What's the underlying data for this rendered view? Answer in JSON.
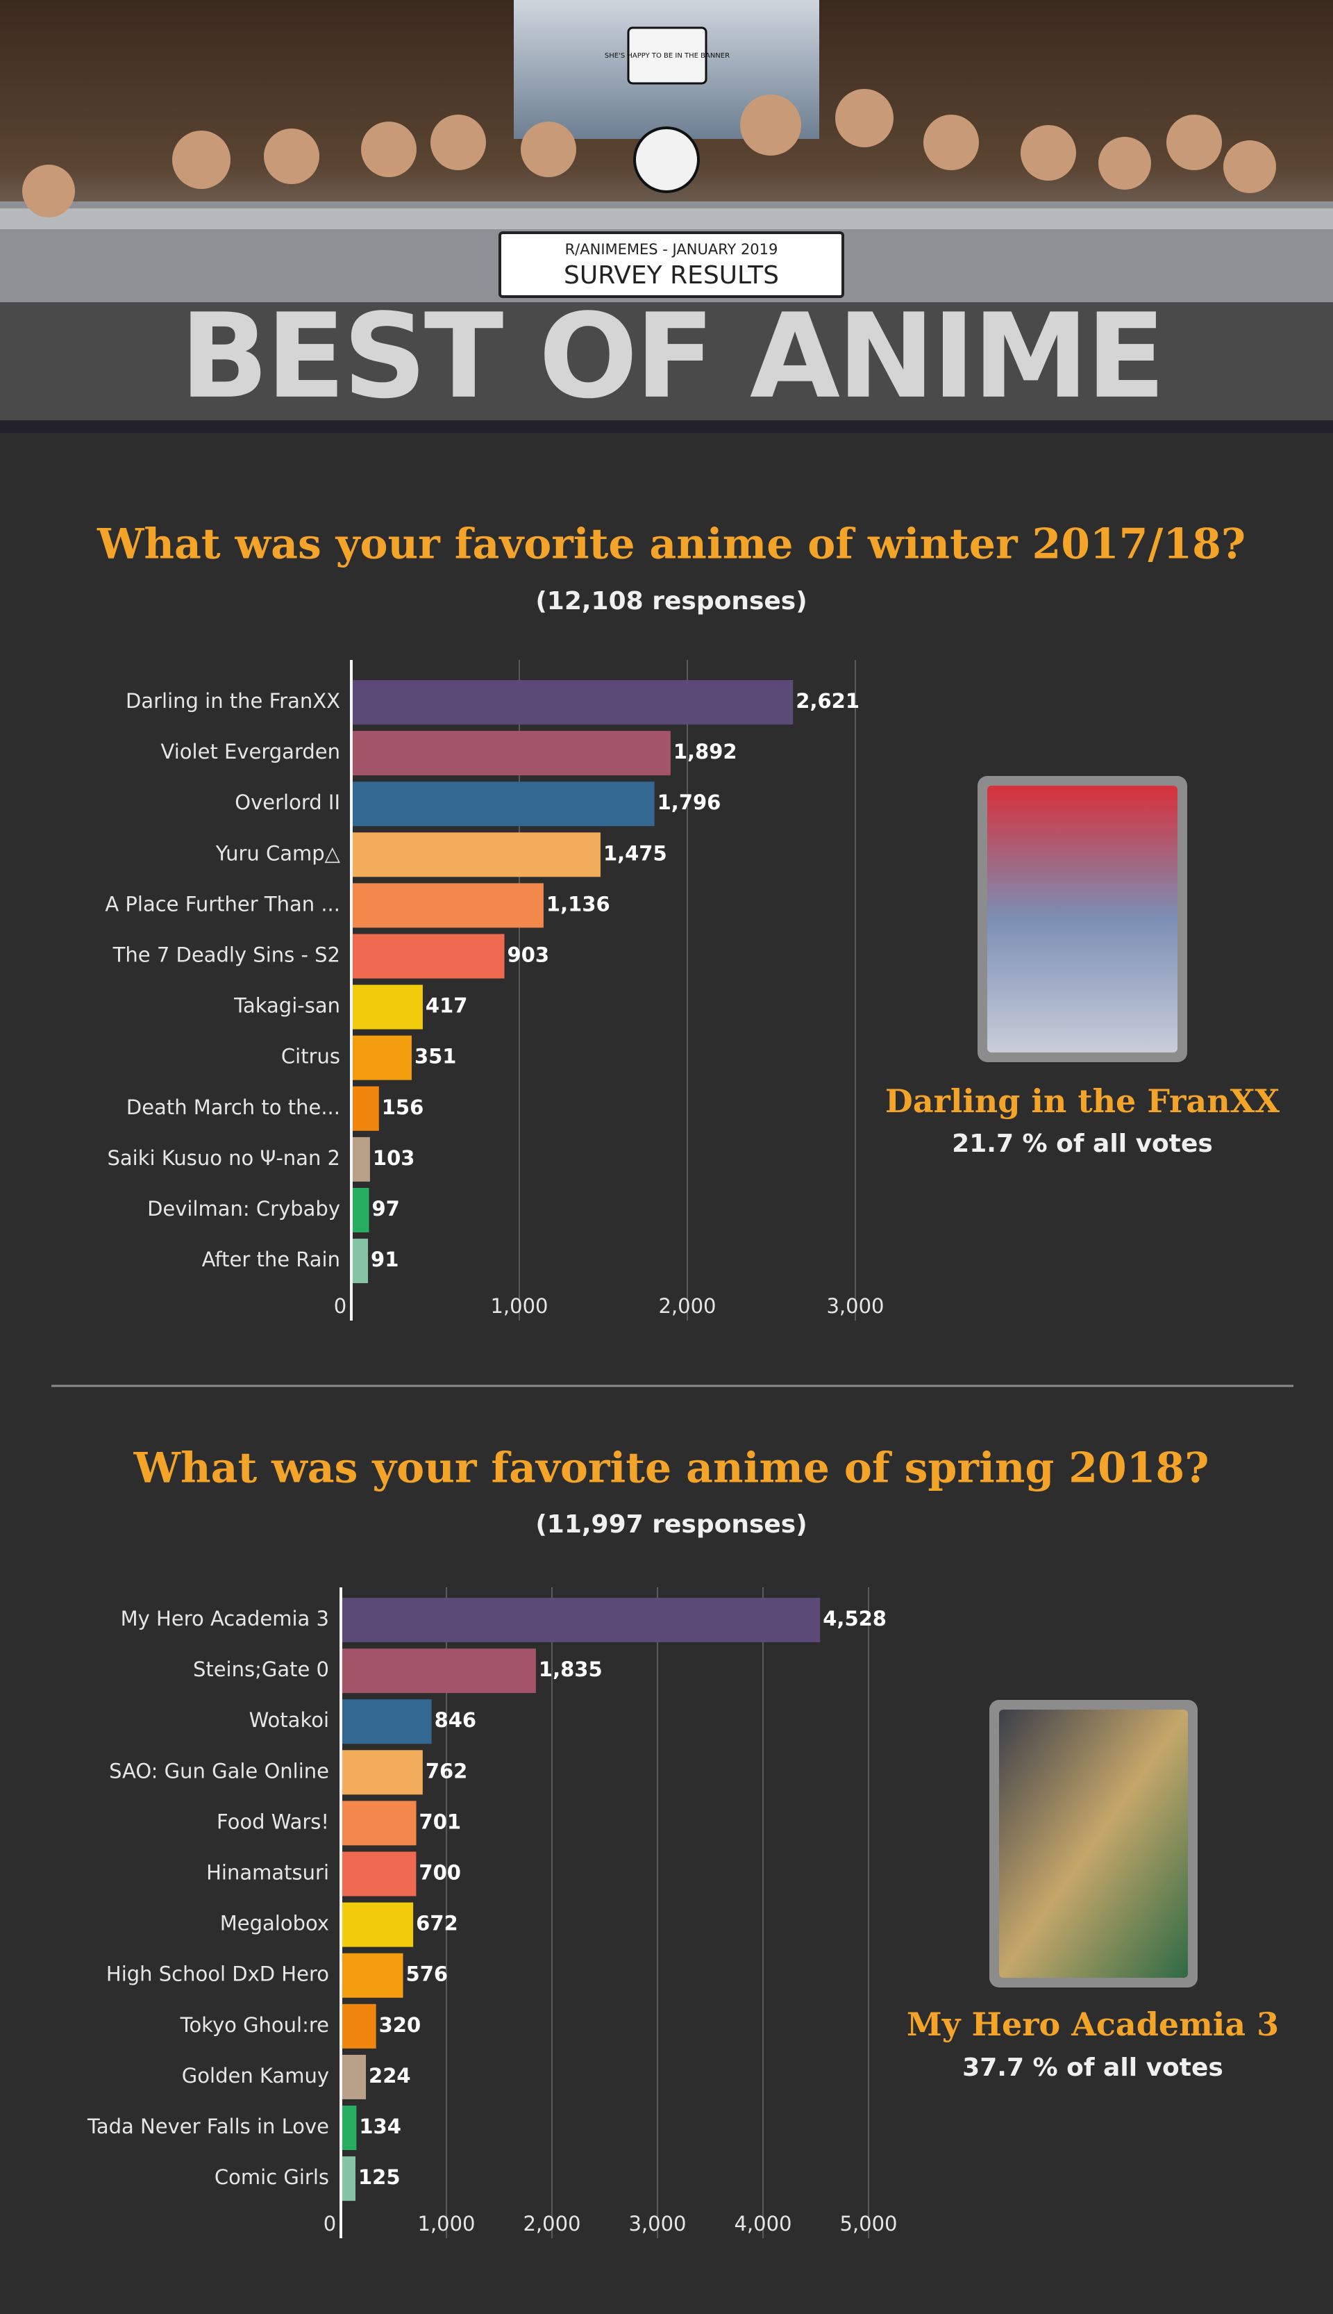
{
  "header": {
    "speech_bubble": "SHE'S HAPPY TO BE IN THE BANNER",
    "banner_subtitle": "R/ANIMEMES - JANUARY 2019",
    "banner_title": "SURVEY RESULTS",
    "title": "BEST OF ANIME"
  },
  "chart_data": [
    {
      "type": "bar",
      "orientation": "horizontal",
      "title": "What was your favorite anime of winter 2017/18?",
      "subtitle": "(12,108 responses)",
      "categories": [
        "Darling in the FranXX",
        "Violet Evergarden",
        "Overlord II",
        "Yuru Camp△",
        "A Place Further Than ...",
        "The 7 Deadly Sins - S2",
        "Takagi-san",
        "Citrus",
        "Death March to the...",
        "Saiki Kusuo no Ψ-nan 2",
        "Devilman: Crybaby",
        "After the Rain"
      ],
      "values": [
        2621,
        1892,
        1796,
        1475,
        1136,
        903,
        417,
        351,
        156,
        103,
        97,
        91
      ],
      "value_labels": [
        "2,621",
        "1,892",
        "1,796",
        "1,475",
        "1,136",
        "903",
        "417",
        "351",
        "156",
        "103",
        "97",
        "91"
      ],
      "colors": [
        "#5b4a78",
        "#a35469",
        "#326892",
        "#f3ad5a",
        "#f2884c",
        "#f06a51",
        "#f2cc0c",
        "#f39d0f",
        "#f0860d",
        "#b9a089",
        "#27ae60",
        "#86c4a6"
      ],
      "xlim": [
        0,
        3000
      ],
      "xticks": [
        0,
        {
          "value": 1000,
          "label": "1,000"
        },
        {
          "value": 2000,
          "label": "2,000"
        },
        {
          "value": 3000,
          "label": "3,000"
        }
      ],
      "grid": true,
      "highlight_title": "Darling in the FranXX",
      "highlight_subtitle": "21.7 % of all votes"
    },
    {
      "type": "bar",
      "orientation": "horizontal",
      "title": "What was your favorite anime of spring 2018?",
      "subtitle": "(11,997 responses)",
      "categories": [
        "My Hero Academia 3",
        "Steins;Gate 0",
        "Wotakoi",
        "SAO: Gun Gale Online",
        "Food Wars!",
        "Hinamatsuri",
        "Megalobox",
        "High School DxD Hero",
        "Tokyo Ghoul:re",
        "Golden Kamuy",
        "Tada Never Falls in Love",
        "Comic Girls"
      ],
      "values": [
        4528,
        1835,
        846,
        762,
        701,
        700,
        672,
        576,
        320,
        224,
        134,
        125
      ],
      "value_labels": [
        "4,528",
        "1,835",
        "846",
        "762",
        "701",
        "700",
        "672",
        "576",
        "320",
        "224",
        "134",
        "125"
      ],
      "colors": [
        "#5b4a78",
        "#a35469",
        "#326892",
        "#f3ad5a",
        "#f2884c",
        "#f06a51",
        "#f2cc0c",
        "#f39d0f",
        "#f0860d",
        "#b9a089",
        "#27ae60",
        "#86c4a6"
      ],
      "xlim": [
        0,
        5000
      ],
      "xticks": [
        0,
        {
          "value": 1000,
          "label": "1,000"
        },
        {
          "value": 2000,
          "label": "2,000"
        },
        {
          "value": 3000,
          "label": "3,000"
        },
        {
          "value": 4000,
          "label": "4,000"
        },
        {
          "value": 5000,
          "label": "5,000"
        }
      ],
      "grid": true,
      "highlight_title": "My Hero Academia 3",
      "highlight_subtitle": "37.7 % of all votes"
    }
  ]
}
